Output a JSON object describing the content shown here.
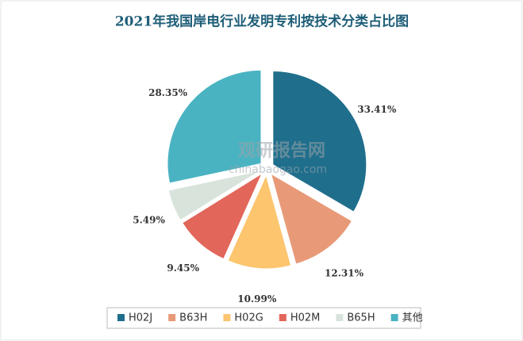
{
  "chart_data": {
    "type": "pie",
    "title": "2021年我国岸电行业发明专利按技术分类占比图",
    "categories": [
      "H02J",
      "B63H",
      "H02G",
      "H02M",
      "B65H",
      "其他"
    ],
    "values": [
      33.41,
      12.31,
      10.99,
      9.45,
      5.49,
      28.35
    ],
    "value_labels": [
      "33.41%",
      "12.31%",
      "10.99%",
      "9.45%",
      "5.49%",
      "28.35%"
    ],
    "colors": [
      "#1f6e8c",
      "#e89a78",
      "#fcc56e",
      "#e2665a",
      "#d8e3dc",
      "#4ab3c2"
    ],
    "legend": "bottom",
    "watermark": {
      "name": "观研报告网",
      "url": "chinabaogao.com"
    }
  }
}
